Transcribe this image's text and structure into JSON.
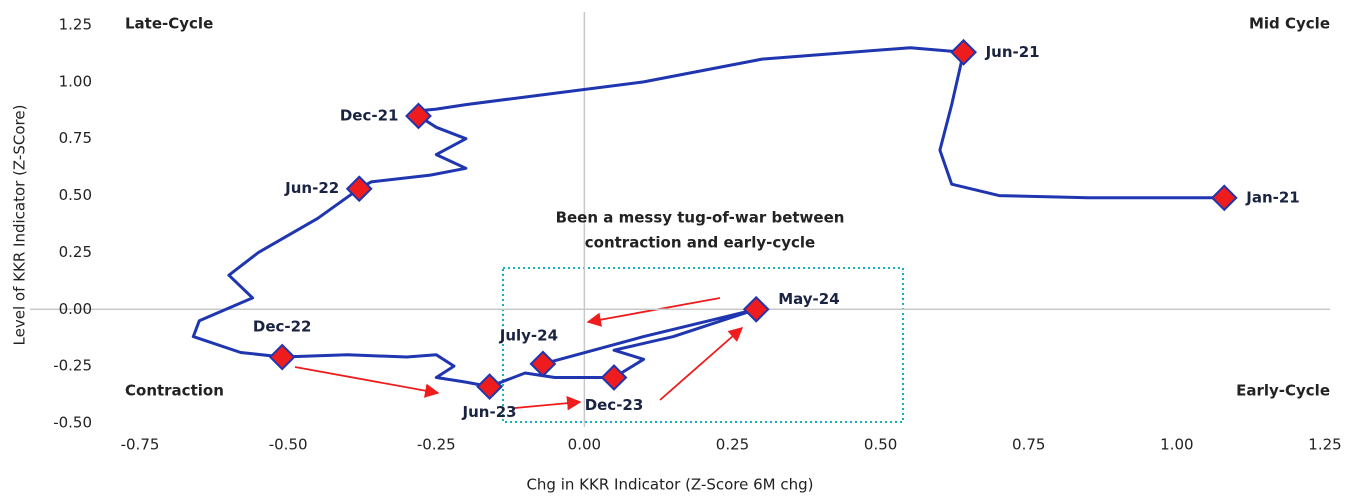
{
  "chart_data": {
    "type": "scatter",
    "xlabel": "Chg in KKR Indicator (Z-Score 6M chg)",
    "ylabel": "Level of KKR Indicator  (Z-SCore)",
    "xlim": [
      -0.75,
      1.25
    ],
    "xticks": [
      {
        "value": -0.75,
        "label": "-0.75"
      },
      {
        "value": -0.5,
        "label": "-0.50"
      },
      {
        "value": -0.25,
        "label": "-0.25"
      },
      {
        "value": 0,
        "label": "0.00"
      },
      {
        "value": 0.25,
        "label": "0.25"
      },
      {
        "value": 0.5,
        "label": "0.50"
      },
      {
        "value": 0.75,
        "label": "0.75"
      },
      {
        "value": 1,
        "label": "1.00"
      },
      {
        "value": 1.25,
        "label": "1.25"
      }
    ],
    "ylim": [
      -0.5,
      1.25
    ],
    "yticks": [
      {
        "value": -0.5,
        "label": "-0.50"
      },
      {
        "value": -0.25,
        "label": "-0.25"
      },
      {
        "value": 0,
        "label": "0.00"
      },
      {
        "value": 0.25,
        "label": "0.25"
      },
      {
        "value": 0.5,
        "label": "0.50"
      },
      {
        "value": 0.75,
        "label": "0.75"
      },
      {
        "value": 1,
        "label": "1.00"
      },
      {
        "value": 1.25,
        "label": "1.25"
      }
    ],
    "path": {
      "color": "#1f36b0",
      "x": [
        1.08,
        0.85,
        0.7,
        0.62,
        0.6,
        0.62,
        0.64,
        0.55,
        0.3,
        0.1,
        -0.05,
        -0.2,
        -0.25,
        -0.29,
        -0.28,
        -0.25,
        -0.2,
        -0.25,
        -0.2,
        -0.26,
        -0.36,
        -0.38,
        -0.45,
        -0.55,
        -0.6,
        -0.56,
        -0.65,
        -0.66,
        -0.58,
        -0.51,
        -0.4,
        -0.3,
        -0.25,
        -0.22,
        -0.25,
        -0.2,
        -0.16,
        -0.1,
        -0.05,
        0.05,
        0.1,
        0.05,
        0.15,
        0.29,
        0.1,
        -0.07
      ],
      "y": [
        0.49,
        0.49,
        0.5,
        0.55,
        0.7,
        0.9,
        1.13,
        1.15,
        1.1,
        1.0,
        0.95,
        0.9,
        0.88,
        0.87,
        0.85,
        0.8,
        0.75,
        0.68,
        0.62,
        0.59,
        0.56,
        0.53,
        0.4,
        0.25,
        0.15,
        0.05,
        -0.05,
        -0.12,
        -0.19,
        -0.21,
        -0.2,
        -0.21,
        -0.2,
        -0.25,
        -0.3,
        -0.32,
        -0.34,
        -0.28,
        -0.3,
        -0.3,
        -0.22,
        -0.18,
        -0.12,
        0.0,
        -0.12,
        -0.24
      ]
    },
    "points": {
      "color": "#ee1c1c",
      "edge": "#1f36b0",
      "labels": [
        "Jan-21",
        "Jun-21",
        "Dec-21",
        "Jun-22",
        "Dec-22",
        "Jun-23",
        "Dec-23",
        "May-24",
        "July-24"
      ],
      "x": [
        1.08,
        0.64,
        -0.28,
        -0.38,
        -0.51,
        -0.16,
        0.05,
        0.29,
        -0.07
      ],
      "y": [
        0.49,
        1.13,
        0.85,
        0.53,
        -0.21,
        -0.34,
        -0.3,
        0.0,
        -0.24
      ]
    },
    "quadrants": [
      {
        "text": "Late-Cycle",
        "color": "#f5a623"
      },
      {
        "text": "Mid Cycle",
        "color": "#1aa3c8"
      },
      {
        "text": "Contraction",
        "color": "#e8201c"
      },
      {
        "text": "Early-Cycle",
        "color": "#4caf1e"
      }
    ],
    "annotation": {
      "lines": [
        "Been a messy tug-of-war between",
        "contraction and early-cycle"
      ],
      "color": "#1aafc0"
    }
  }
}
